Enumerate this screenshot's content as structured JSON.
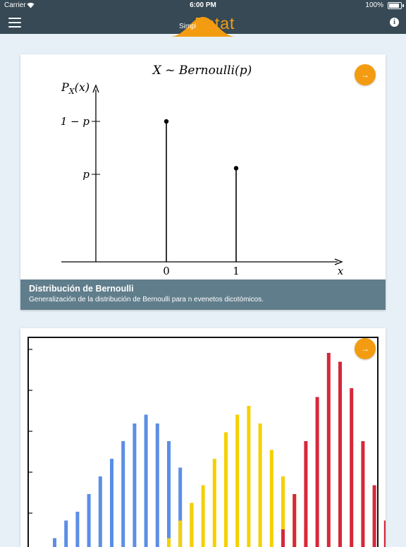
{
  "status_bar": {
    "carrier": "Carrier",
    "time": "6:00 PM",
    "battery": "100%"
  },
  "nav": {
    "logo_small": "Simpl",
    "logo_large": "Estat",
    "info_symbol": "i"
  },
  "colors": {
    "nav_bg": "#364955",
    "accent": "#f39c12",
    "caption_bg": "#607d8b",
    "page_bg": "#e6f0f6",
    "blue": "#5b8ee6",
    "yellow": "#f5d000",
    "red": "#d62839"
  },
  "cards": [
    {
      "title": "Distribución de Bernoulli",
      "subtitle": "Generalización de la distribución de Bernoulli para n evenetos dicotómicos.",
      "go_symbol": "→",
      "figure": {
        "heading": "X ~ Bernoulli(p)",
        "ylabel": "P",
        "ylabel_sub": "X",
        "ylabel_arg": "(x)",
        "xlabel": "x",
        "y_ticks": [
          "1 − p",
          "p"
        ],
        "x_ticks": [
          "0",
          "1"
        ]
      },
      "chart_data": {
        "type": "bar",
        "categories": [
          "0",
          "1"
        ],
        "values": [
          0.6,
          0.4
        ],
        "xlabel": "x",
        "ylabel": "P_X(x)",
        "title": "X ~ Bernoulli(p)"
      }
    },
    {
      "go_symbol": "→",
      "chart_data": {
        "type": "bar",
        "title": "",
        "series": [
          {
            "name": "",
            "color": "#5b8ee6",
            "x": [
              1,
              2,
              3,
              4,
              5,
              6,
              7,
              8,
              9,
              10,
              11,
              12,
              13
            ],
            "values": [
              1,
              3,
              4,
              6,
              8,
              10,
              12,
              14,
              15,
              14,
              12,
              9,
              5
            ]
          },
          {
            "name": "",
            "color": "#f5d000",
            "x": [
              11,
              12,
              13,
              14,
              15,
              16,
              17,
              18,
              19,
              20,
              21,
              22,
              23
            ],
            "values": [
              1,
              3,
              5,
              7,
              10,
              13,
              15,
              16,
              14,
              11,
              8,
              6,
              2
            ]
          },
          {
            "name": "",
            "color": "#d62839",
            "x": [
              21,
              22,
              23,
              24,
              25,
              26,
              27,
              28,
              29,
              30
            ],
            "values": [
              2,
              6,
              12,
              17,
              22,
              21,
              18,
              12,
              7,
              3
            ]
          }
        ],
        "grid": false
      }
    }
  ]
}
